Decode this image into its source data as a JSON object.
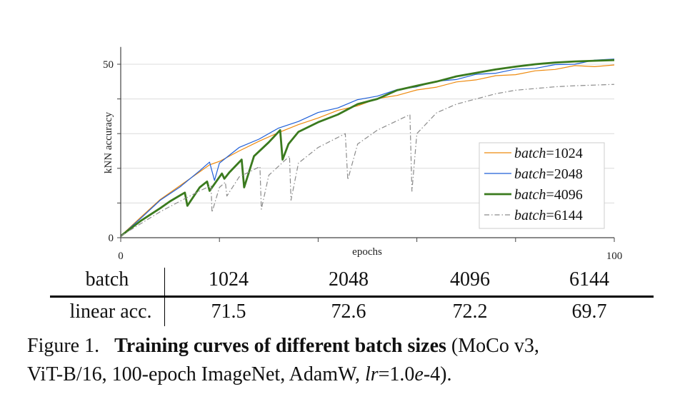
{
  "chart_data": {
    "type": "line",
    "xlabel": "epochs",
    "ylabel": "kNN accuracy",
    "xlim": [
      0,
      100
    ],
    "ylim": [
      0,
      55
    ],
    "x_ticks": [
      0,
      20,
      40,
      60,
      80,
      100
    ],
    "x_tick_labels": [
      "0",
      "",
      "",
      "",
      "",
      "100"
    ],
    "y_ticks": [
      0,
      10,
      20,
      30,
      40,
      50
    ],
    "y_tick_labels": [
      "0",
      "",
      "",
      "",
      "",
      "50"
    ],
    "grid": true,
    "legend_position": "lower-right",
    "series": [
      {
        "name": "batch=1024",
        "legend_var": "batch",
        "legend_value": "=1024",
        "color": "#ee8a0e",
        "style": "solid-thin",
        "x": [
          0,
          4,
          8,
          12,
          16,
          18,
          19,
          20,
          24,
          28,
          32,
          36,
          40,
          44,
          48,
          52,
          56,
          60,
          64,
          68,
          72,
          76,
          80,
          84,
          88,
          92,
          96,
          100
        ],
        "y": [
          0.5,
          5.8,
          11.0,
          15.0,
          19.0,
          21.0,
          21.5,
          22.0,
          25.0,
          27.8,
          30.3,
          32.6,
          34.5,
          36.7,
          38.0,
          40.1,
          41.0,
          42.6,
          43.4,
          44.9,
          45.5,
          46.7,
          47.0,
          48.1,
          48.5,
          49.6,
          49.3,
          49.8
        ]
      },
      {
        "name": "batch=2048",
        "legend_var": "batch",
        "legend_value": "=2048",
        "color": "#1f5fd8",
        "style": "solid-thin",
        "x": [
          0,
          4,
          8,
          12,
          16,
          18,
          19,
          20,
          24,
          28,
          32,
          36,
          40,
          44,
          48,
          52,
          56,
          60,
          64,
          68,
          72,
          76,
          80,
          84,
          88,
          92,
          96,
          100
        ],
        "y": [
          0.5,
          5.5,
          10.8,
          14.6,
          19.3,
          21.8,
          16.5,
          21.5,
          26.0,
          28.4,
          31.6,
          33.5,
          36.1,
          37.4,
          39.8,
          40.8,
          42.7,
          43.5,
          45.1,
          45.6,
          47.1,
          47.4,
          48.6,
          48.8,
          49.9,
          50.0,
          51.2,
          51.5
        ]
      },
      {
        "name": "batch=4096",
        "legend_var": "batch",
        "legend_value": "=4096",
        "color": "#3a7a1e",
        "style": "solid-thick",
        "x": [
          0,
          4,
          8,
          10,
          13,
          13.5,
          16,
          17.5,
          18,
          20.5,
          21,
          22,
          24.5,
          25,
          27,
          30,
          32.3,
          32.8,
          34,
          36,
          40,
          44,
          48,
          52,
          56,
          60,
          64,
          68,
          72,
          76,
          80,
          84,
          88,
          92,
          96,
          100
        ],
        "y": [
          0.5,
          4.8,
          8.5,
          10.5,
          13.0,
          9.2,
          14.5,
          16.2,
          13.5,
          18.5,
          17.0,
          18.8,
          22.5,
          14.5,
          23.5,
          27.5,
          31.0,
          22.5,
          27.0,
          30.5,
          33.3,
          35.5,
          38.5,
          40.0,
          42.5,
          43.8,
          45.0,
          46.5,
          47.5,
          48.5,
          49.3,
          50.0,
          50.5,
          50.8,
          51.0,
          51.2
        ]
      },
      {
        "name": "batch=6144",
        "legend_var": "batch",
        "legend_value": "=6144",
        "color": "#8c8c8c",
        "style": "dash-dot",
        "x": [
          0,
          4,
          8,
          12,
          16,
          18.3,
          18.5,
          20,
          21.2,
          21.5,
          24,
          28.2,
          28.5,
          30,
          34.2,
          34.5,
          36,
          40,
          45.5,
          46,
          48,
          52,
          58.6,
          59,
          60,
          64,
          68,
          72,
          76,
          80,
          84,
          88,
          92,
          96,
          100
        ],
        "y": [
          0.5,
          4.0,
          7.5,
          10.5,
          13.5,
          15.0,
          7.3,
          14.5,
          16.0,
          12.0,
          17.5,
          20.5,
          8.2,
          18.0,
          23.5,
          10.8,
          21.5,
          26.0,
          30.0,
          16.7,
          27.0,
          31.0,
          35.5,
          13.4,
          30.0,
          36.0,
          38.5,
          40.0,
          41.5,
          42.5,
          43.0,
          43.5,
          43.8,
          44.0,
          44.2
        ]
      }
    ]
  },
  "table": {
    "header": [
      "batch",
      "1024",
      "2048",
      "4096",
      "6144"
    ],
    "row": [
      "linear acc.",
      "71.5",
      "72.6",
      "72.2",
      "69.7"
    ]
  },
  "caption": {
    "label": "Figure 1.",
    "bold": "Training curves of different batch sizes",
    "rest1": " (MoCo v3,",
    "line2_a": "ViT-B/16, 100-epoch ImageNet, AdamW, ",
    "lr_var": "lr",
    "lr_eq": "=1.0",
    "lr_e": "e",
    "lr_tail": "-4)."
  }
}
